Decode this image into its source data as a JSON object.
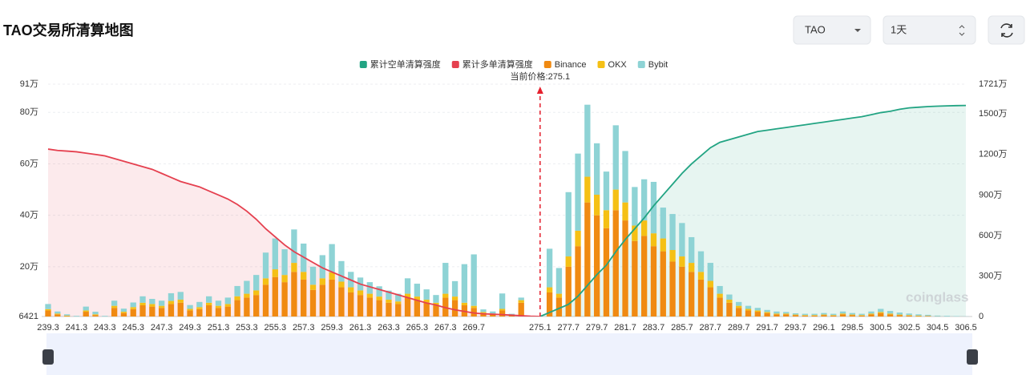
{
  "header": {
    "title": "TAO交易所清算地图"
  },
  "controls": {
    "symbol": "TAO",
    "period": "1天"
  },
  "chart_data": {
    "type": "bar",
    "stacked": true,
    "grid": true,
    "legend": "top",
    "watermark": "coinglass",
    "annotation": {
      "label": "当前价格:275.1",
      "value": 275.1
    },
    "categories": [
      "239.3",
      null,
      null,
      "241.3",
      null,
      null,
      "243.3",
      null,
      null,
      "245.3",
      null,
      null,
      "247.3",
      null,
      null,
      "249.3",
      null,
      null,
      "251.3",
      null,
      null,
      "253.3",
      null,
      null,
      "255.3",
      null,
      null,
      "257.3",
      null,
      null,
      "259.3",
      null,
      null,
      "261.3",
      null,
      null,
      "263.3",
      null,
      null,
      "265.3",
      null,
      null,
      "267.3",
      null,
      null,
      "269.7",
      null,
      null,
      null,
      null,
      null,
      null,
      "275.1",
      null,
      null,
      "277.7",
      null,
      null,
      "279.7",
      null,
      null,
      "281.7",
      null,
      null,
      "283.7",
      null,
      null,
      "285.7",
      null,
      null,
      "287.7",
      null,
      null,
      "289.7",
      null,
      null,
      "291.7",
      null,
      null,
      "293.7",
      null,
      null,
      "296.1",
      null,
      null,
      "298.5",
      null,
      null,
      "300.5",
      null,
      null,
      "302.5",
      null,
      null,
      "304.5",
      null,
      null,
      "306.5"
    ],
    "ylim": [
      6421,
      910000
    ],
    "yticks": [
      6421,
      {
        "value": 200000,
        "label": "20万"
      },
      {
        "value": 400000,
        "label": "40万"
      },
      {
        "value": 600000,
        "label": "60万"
      },
      {
        "value": 800000,
        "label": "80万"
      },
      {
        "value": 910000,
        "label": "91万"
      }
    ],
    "y2lim": [
      0,
      17210000
    ],
    "y2ticks": [
      0,
      {
        "value": 3000000,
        "label": "300万"
      },
      {
        "value": 6000000,
        "label": "600万"
      },
      {
        "value": 9000000,
        "label": "900万"
      },
      {
        "value": 12000000,
        "label": "1200万"
      },
      {
        "value": 15000000,
        "label": "1500万"
      },
      {
        "value": 17210000,
        "label": "1721万"
      }
    ],
    "series": [
      {
        "name": "累计空单清算强度",
        "type": "line",
        "axis": "y2",
        "color": "#22a483",
        "fill": "rgba(34,164,131,0.11)",
        "values": [
          null,
          null,
          null,
          null,
          null,
          null,
          null,
          null,
          null,
          null,
          null,
          null,
          null,
          null,
          null,
          null,
          null,
          null,
          null,
          null,
          null,
          null,
          null,
          null,
          null,
          null,
          null,
          null,
          null,
          null,
          null,
          null,
          null,
          null,
          null,
          null,
          null,
          null,
          null,
          null,
          null,
          null,
          null,
          null,
          null,
          null,
          null,
          null,
          null,
          null,
          null,
          null,
          0,
          300000,
          600000,
          900000,
          1500000,
          2300000,
          3100000,
          3800000,
          4800000,
          5700000,
          6500000,
          7300000,
          8200000,
          9000000,
          9800000,
          10600000,
          11300000,
          11900000,
          12500000,
          12900000,
          13100000,
          13300000,
          13500000,
          13700000,
          13800000,
          13900000,
          14000000,
          14100000,
          14200000,
          14300000,
          14400000,
          14500000,
          14600000,
          14700000,
          14800000,
          14950000,
          15100000,
          15200000,
          15350000,
          15450000,
          15500000,
          15550000,
          15580000,
          15600000,
          15620000,
          15630000
        ]
      },
      {
        "name": "累计多单清算强度",
        "type": "line",
        "axis": "y2",
        "color": "#e5404f",
        "fill": "rgba(229,64,79,0.11)",
        "values": [
          12400000,
          12300000,
          12250000,
          12200000,
          12100000,
          12000000,
          11900000,
          11700000,
          11500000,
          11300000,
          11100000,
          10900000,
          10600000,
          10300000,
          10000000,
          9800000,
          9600000,
          9300000,
          9000000,
          8700000,
          8300000,
          7800000,
          7200000,
          6500000,
          5900000,
          5300000,
          4800000,
          4400000,
          4000000,
          3600000,
          3300000,
          3000000,
          2700000,
          2400000,
          2200000,
          2000000,
          1800000,
          1600000,
          1400000,
          1200000,
          1000000,
          850000,
          650000,
          500000,
          380000,
          260000,
          200000,
          170000,
          140000,
          100000,
          60000,
          20000,
          0,
          null,
          null,
          null,
          null,
          null,
          null,
          null,
          null,
          null,
          null,
          null,
          null,
          null,
          null,
          null,
          null,
          null,
          null,
          null,
          null,
          null,
          null,
          null,
          null,
          null,
          null,
          null,
          null,
          null,
          null,
          null,
          null,
          null,
          null,
          null,
          null,
          null,
          null,
          null,
          null,
          null,
          null,
          null,
          null,
          null
        ]
      },
      {
        "name": "Binance",
        "type": "bar",
        "color": "#f08a12",
        "values": [
          30000,
          15000,
          8000,
          5000,
          25000,
          12000,
          5000,
          40000,
          20000,
          35000,
          50000,
          45000,
          40000,
          55000,
          60000,
          30000,
          35000,
          50000,
          40000,
          45000,
          70000,
          80000,
          90000,
          130000,
          160000,
          140000,
          180000,
          150000,
          110000,
          130000,
          150000,
          120000,
          100000,
          90000,
          80000,
          70000,
          60000,
          55000,
          80000,
          70000,
          60000,
          50000,
          80000,
          70000,
          50000,
          40000,
          20000,
          15000,
          30000,
          10000,
          60000,
          5000,
          2000,
          100000,
          80000,
          200000,
          280000,
          450000,
          400000,
          350000,
          420000,
          380000,
          300000,
          320000,
          280000,
          260000,
          220000,
          200000,
          180000,
          150000,
          120000,
          80000,
          60000,
          40000,
          30000,
          25000,
          20000,
          15000,
          15000,
          12000,
          10000,
          10000,
          12000,
          10000,
          15000,
          12000,
          10000,
          15000,
          20000,
          15000,
          12000,
          10000,
          8000,
          8000,
          6000,
          5000,
          5000,
          4000
        ]
      },
      {
        "name": "OKX",
        "type": "bar",
        "color": "#f5c015",
        "values": [
          5000,
          3000,
          2000,
          1000,
          5000,
          3000,
          1000,
          8000,
          5000,
          8000,
          10000,
          10000,
          8000,
          12000,
          12000,
          6000,
          8000,
          10000,
          8000,
          10000,
          15000,
          15000,
          18000,
          25000,
          30000,
          28000,
          35000,
          30000,
          20000,
          25000,
          28000,
          22000,
          20000,
          18000,
          15000,
          14000,
          12000,
          10000,
          15000,
          14000,
          12000,
          10000,
          15000,
          14000,
          10000,
          8000,
          4000,
          3000,
          6000,
          2000,
          10000,
          1000,
          0,
          20000,
          15000,
          40000,
          60000,
          100000,
          80000,
          70000,
          80000,
          70000,
          60000,
          60000,
          50000,
          50000,
          45000,
          40000,
          35000,
          30000,
          25000,
          15000,
          12000,
          8000,
          6000,
          5000,
          4000,
          3000,
          3000,
          2000,
          2000,
          2000,
          2000,
          2000,
          3000,
          2000,
          2000,
          3000,
          4000,
          3000,
          2000,
          2000,
          2000,
          1000,
          1000,
          1000,
          1000,
          1000
        ]
      },
      {
        "name": "Bybit",
        "type": "bar",
        "color": "#8ed3d5",
        "values": [
          20000,
          8000,
          5000,
          3000,
          15000,
          10000,
          3000,
          20000,
          12000,
          18000,
          25000,
          20000,
          20000,
          30000,
          30000,
          15000,
          20000,
          25000,
          20000,
          25000,
          40000,
          50000,
          60000,
          100000,
          120000,
          100000,
          130000,
          110000,
          70000,
          90000,
          110000,
          80000,
          60000,
          50000,
          45000,
          40000,
          35000,
          30000,
          60000,
          50000,
          40000,
          30000,
          120000,
          60000,
          150000,
          200000,
          10000,
          8000,
          60000,
          5000,
          10000,
          3000,
          0,
          150000,
          100000,
          250000,
          300000,
          280000,
          200000,
          150000,
          250000,
          200000,
          150000,
          160000,
          200000,
          120000,
          140000,
          130000,
          100000,
          80000,
          70000,
          30000,
          20000,
          15000,
          12000,
          10000,
          8000,
          8000,
          6000,
          5000,
          5000,
          5000,
          6000,
          5000,
          8000,
          6000,
          5000,
          8000,
          12000,
          10000,
          8000,
          6000,
          5000,
          4000,
          3000,
          3000,
          2000,
          2000
        ]
      }
    ]
  }
}
